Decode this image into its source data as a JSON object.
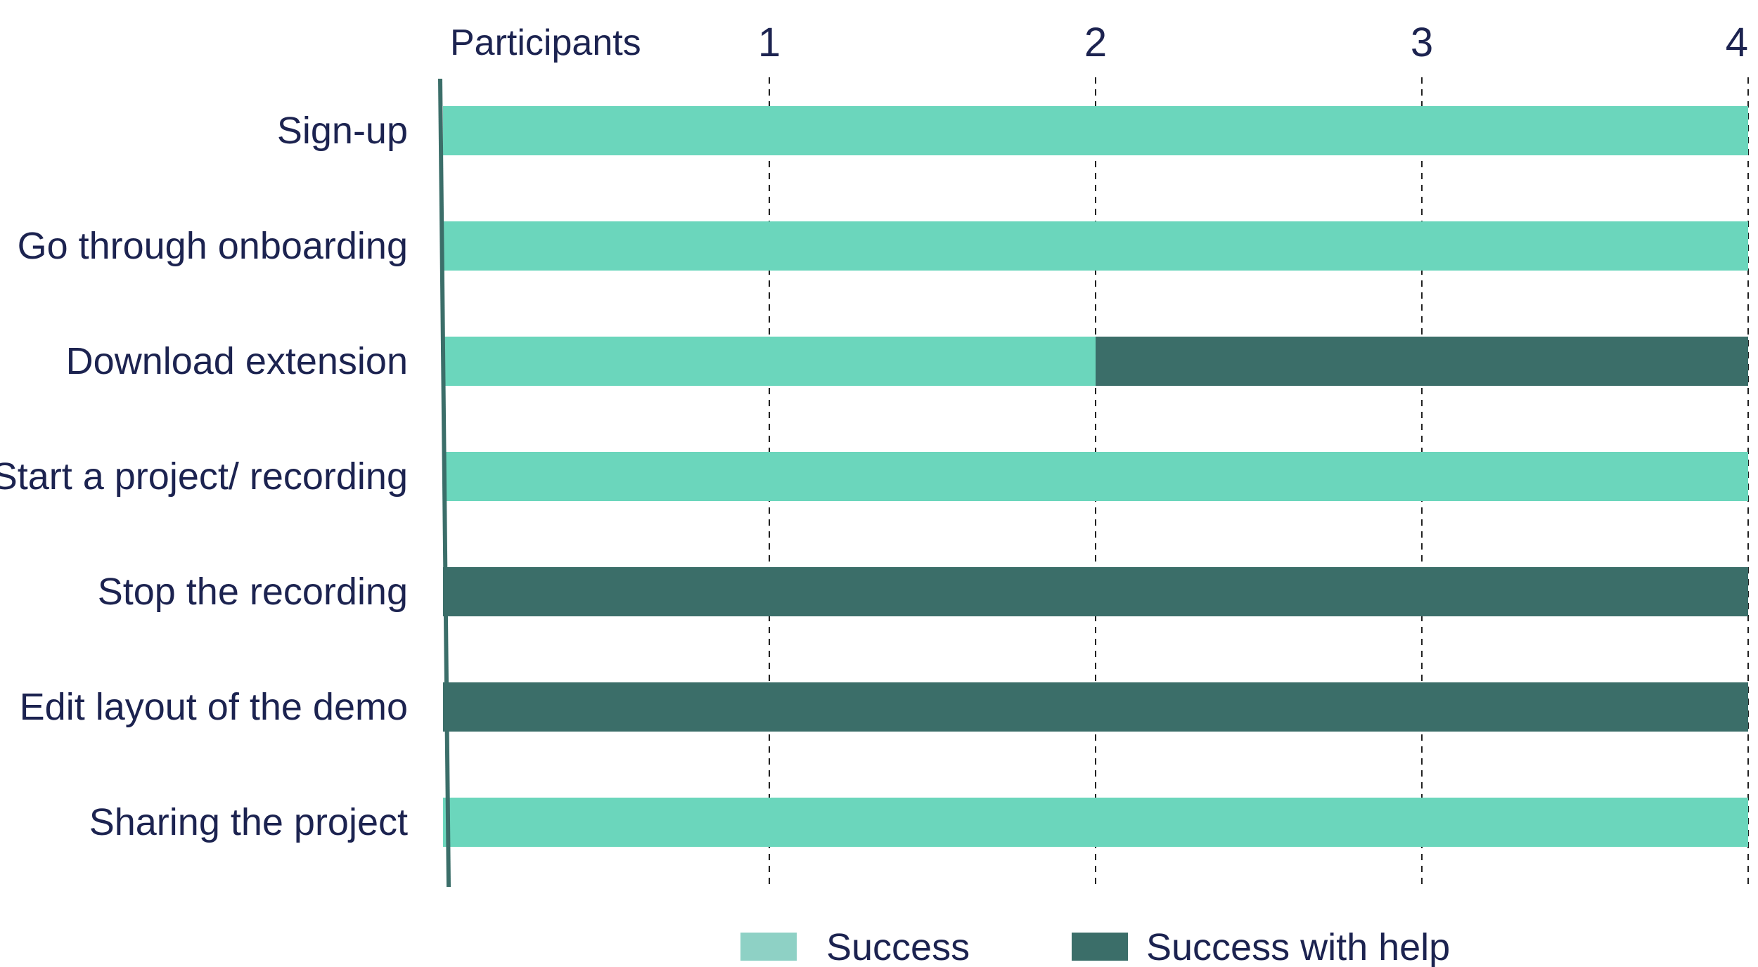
{
  "chart_data": {
    "type": "bar",
    "orientation": "horizontal",
    "stacked": true,
    "xlabel": "Participants",
    "xlim": [
      0,
      4
    ],
    "xticks": [
      1,
      2,
      3,
      4
    ],
    "grid": "vertical dashed",
    "legend_position": "bottom",
    "categories": [
      "Sign-up",
      "Go through onboarding",
      "Download extension",
      "Start a project/ recording",
      "Stop the recording",
      "Edit layout of the demo",
      "Sharing the project"
    ],
    "series": [
      {
        "name": "Success",
        "color": "#6bd6bc",
        "legend_color": "#8ed1c5",
        "values": [
          4,
          4,
          2,
          4,
          0,
          0,
          4
        ]
      },
      {
        "name": "Success with help",
        "color": "#3b6e69",
        "values": [
          0,
          0,
          2,
          0,
          4,
          4,
          0
        ]
      }
    ],
    "axis_color": "#3b6e69",
    "text_color": "#1c2350"
  }
}
